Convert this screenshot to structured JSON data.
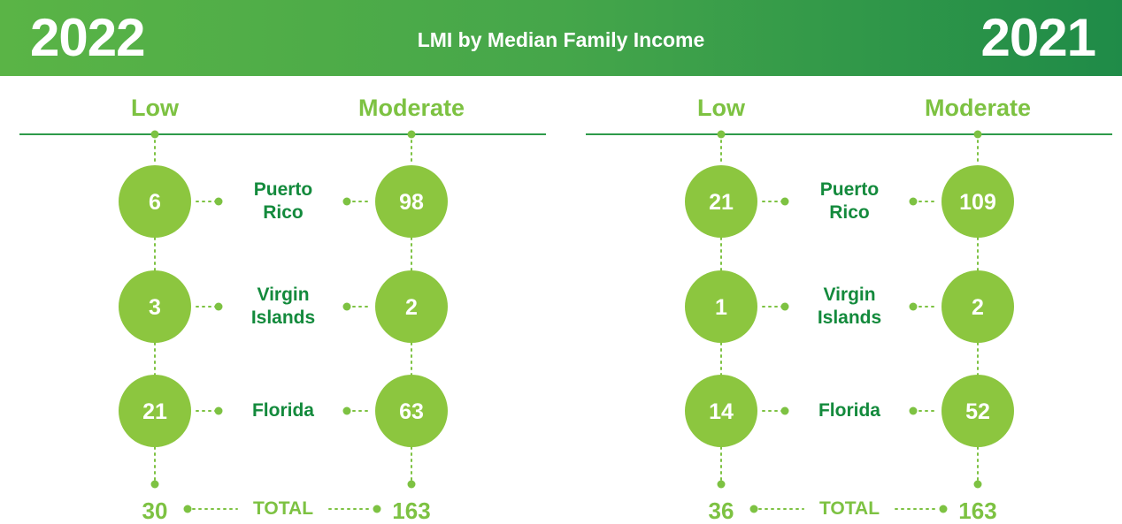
{
  "header": {
    "left_year": "2022",
    "title": "LMI by Median Family Income",
    "right_year": "2021"
  },
  "panels": [
    {
      "columns": [
        "Low",
        "Moderate"
      ],
      "rows": [
        {
          "label": "Puerto Rico",
          "low": 6,
          "moderate": 98
        },
        {
          "label": "Virgin Islands",
          "low": 3,
          "moderate": 2
        },
        {
          "label": "Florida",
          "low": 21,
          "moderate": 63
        }
      ],
      "total_label": "TOTAL",
      "totals": {
        "low": 30,
        "moderate": 163
      }
    },
    {
      "columns": [
        "Low",
        "Moderate"
      ],
      "rows": [
        {
          "label": "Puerto Rico",
          "low": 21,
          "moderate": 109
        },
        {
          "label": "Virgin Islands",
          "low": 1,
          "moderate": 2
        },
        {
          "label": "Florida",
          "low": 14,
          "moderate": 52
        }
      ],
      "total_label": "TOTAL",
      "totals": {
        "low": 36,
        "moderate": 163
      }
    }
  ]
}
